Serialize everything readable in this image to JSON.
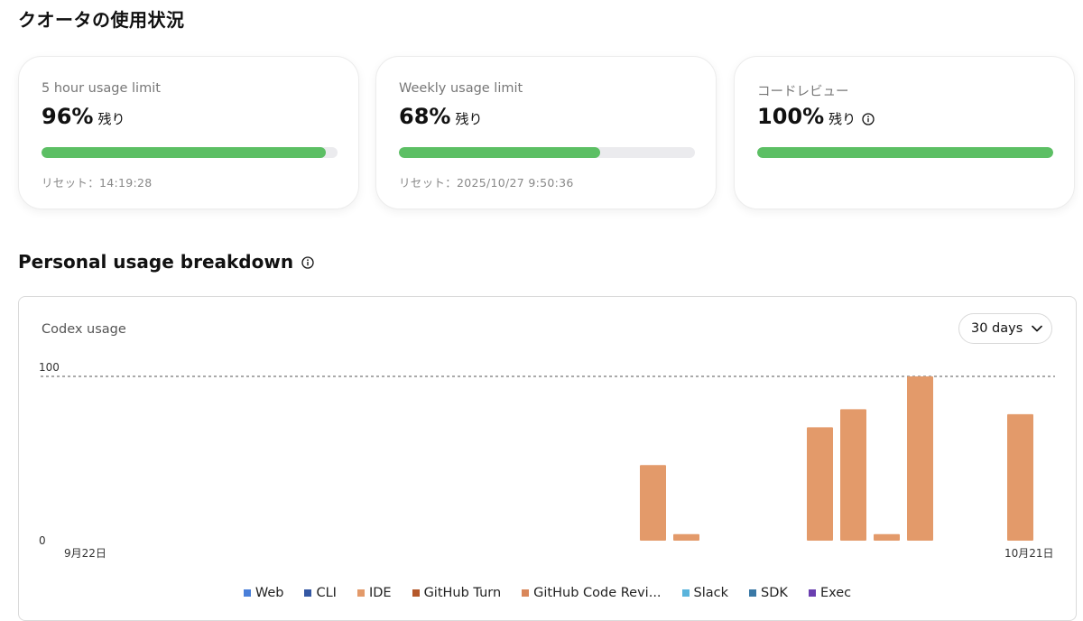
{
  "page": {
    "title": "クオータの使用状況"
  },
  "quota_cards": [
    {
      "label": "5 hour usage limit",
      "percent": "96%",
      "remaining_fraction": 0.96,
      "remain_text": "残り",
      "reset": "リセット：14:19:28"
    },
    {
      "label": "Weekly usage limit",
      "percent": "68%",
      "remaining_fraction": 0.68,
      "remain_text": "残り",
      "reset": "リセット：2025/10/27 9:50:36"
    },
    {
      "label": "コードレビュー",
      "percent": "100%",
      "remaining_fraction": 1.0,
      "remain_text": "残り",
      "reset": ""
    }
  ],
  "breakdown": {
    "title": "Personal usage breakdown",
    "chart_label": "Codex usage",
    "range": {
      "selected": "30 days"
    }
  },
  "colors": {
    "progress": "#5cbf64",
    "bar": "#e39a6a",
    "accent": "#111111"
  },
  "chart_data": {
    "type": "bar",
    "title": "",
    "x_start_label": "9月22日",
    "x_end_label": "10月21日",
    "categories": [
      "9/22",
      "9/23",
      "9/24",
      "9/25",
      "9/26",
      "9/27",
      "9/28",
      "9/29",
      "9/30",
      "10/1",
      "10/2",
      "10/3",
      "10/4",
      "10/5",
      "10/6",
      "10/7",
      "10/8",
      "10/9",
      "10/10",
      "10/11",
      "10/12",
      "10/13",
      "10/14",
      "10/15",
      "10/16",
      "10/17",
      "10/18",
      "10/19",
      "10/20",
      "10/21"
    ],
    "series": [
      {
        "name": "IDE",
        "color": "#e39a6a",
        "values": [
          0,
          0,
          0,
          0,
          0,
          0,
          0,
          0,
          0,
          0,
          0,
          0,
          0,
          0,
          0,
          0,
          0,
          0,
          46,
          4,
          0,
          0,
          0,
          69,
          80,
          4,
          100,
          0,
          0,
          77
        ]
      }
    ],
    "ylim": [
      0,
      100
    ],
    "yticks": [
      "0",
      "100"
    ],
    "reference_line": 100,
    "legend": [
      {
        "name": "Web",
        "color": "#4a7fd9"
      },
      {
        "name": "CLI",
        "color": "#3457a3"
      },
      {
        "name": "IDE",
        "color": "#e39a6a"
      },
      {
        "name": "GitHub Turn",
        "color": "#b5582a"
      },
      {
        "name": "GitHub Code Revi...",
        "color": "#d9875a"
      },
      {
        "name": "Slack",
        "color": "#5ab4dc"
      },
      {
        "name": "SDK",
        "color": "#3a79a6"
      },
      {
        "name": "Exec",
        "color": "#6a3fb0"
      }
    ],
    "legend_position": "bottom"
  }
}
